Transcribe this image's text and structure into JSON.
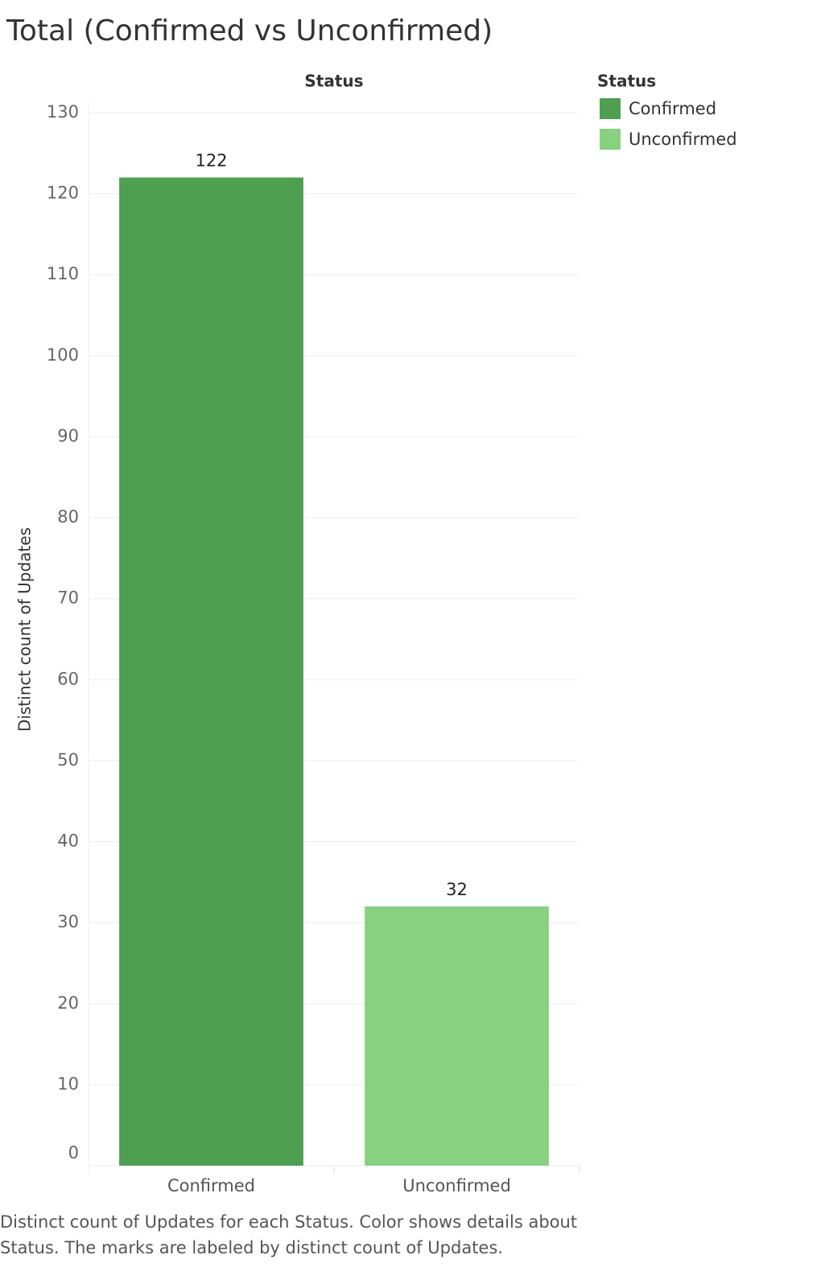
{
  "chart_data": {
    "type": "bar",
    "title": "Total (Confirmed vs Unconfirmed)",
    "x_header": "Status",
    "y_label": "Distinct count of Updates",
    "categories": [
      "Confirmed",
      "Unconfirmed"
    ],
    "values": [
      122,
      32
    ],
    "colors": [
      "#4e9f50",
      "#87d180"
    ],
    "ylim": [
      0,
      130
    ],
    "yticks": [
      0,
      10,
      20,
      30,
      40,
      50,
      60,
      70,
      80,
      90,
      100,
      110,
      120,
      130
    ],
    "grid": true,
    "legend_title": "Status",
    "legend_position": "right",
    "caption": "Distinct count of Updates for each Status.  Color shows details about Status.  The marks are labeled by distinct count of Updates."
  }
}
